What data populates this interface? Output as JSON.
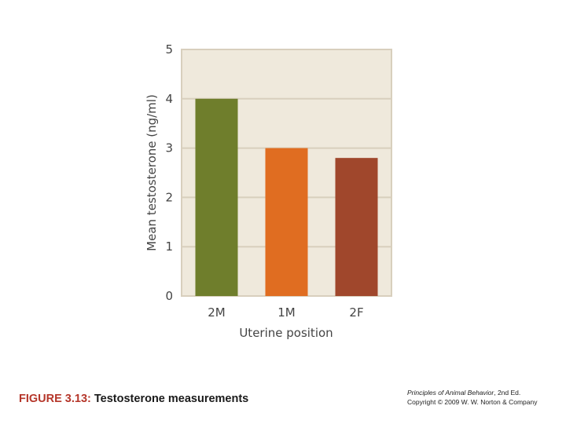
{
  "chart_data": {
    "type": "bar",
    "categories": [
      "2M",
      "1M",
      "2F"
    ],
    "values": [
      4.0,
      3.0,
      2.8
    ],
    "colors": [
      "#6f7e2c",
      "#e06d21",
      "#a0472c"
    ],
    "plot_background": "#efe9dc",
    "gridline_color": "#d8cfbd",
    "xlabel": "Uterine position",
    "ylabel": "Mean testosterone (ng/ml)",
    "ylim": [
      0,
      5
    ],
    "yticks": [
      "0",
      "1",
      "2",
      "3",
      "4",
      "5"
    ],
    "grid": true
  },
  "caption": {
    "figure_number": "FIGURE 3.13:",
    "title": "Testosterone measurements"
  },
  "credit": {
    "book_title": "Principles of Animal Behavior",
    "edition": ", 2nd Ed.",
    "copyright": "Copyright © 2009 W. W. Norton & Company"
  }
}
